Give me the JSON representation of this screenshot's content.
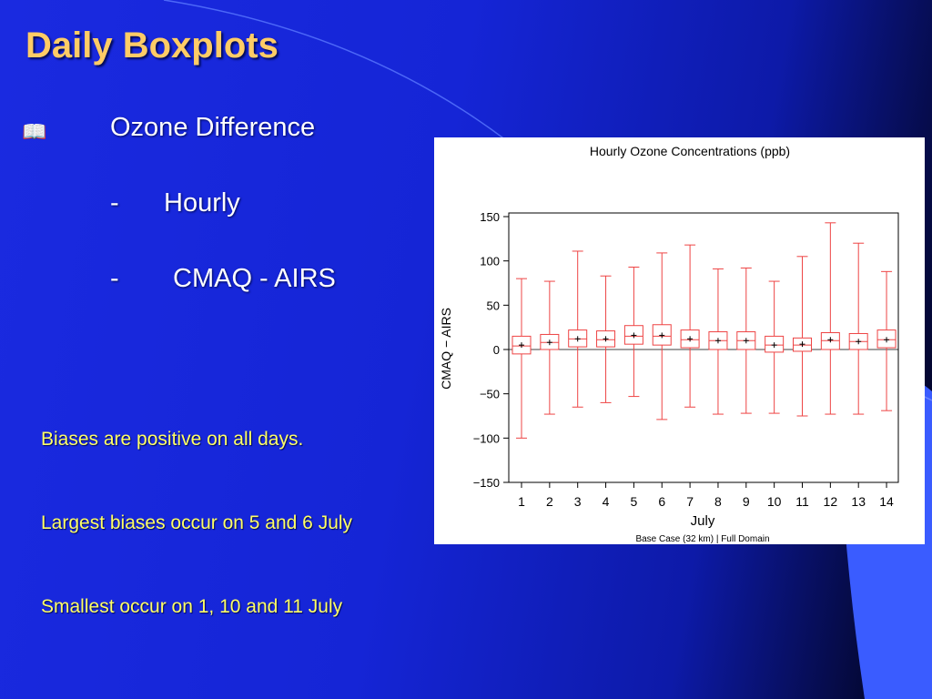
{
  "slide": {
    "title": "Daily Boxplots",
    "bullet_icon": "book-icon",
    "bullet_heading": "Ozone Difference",
    "sub_items": [
      {
        "marker": "-",
        "label": "Hourly"
      },
      {
        "marker": "-",
        "label": "CMAQ - AIRS"
      }
    ],
    "notes": [
      "Biases are positive on all days.",
      "Largest biases occur on 5 and 6 July",
      "Smallest occur on 1, 10 and 11 July"
    ],
    "colors": {
      "title": "#ffcc66",
      "notes": "#ffff66",
      "text": "#ffffff",
      "box": "#ee4444"
    }
  },
  "chart_data": {
    "type": "boxplot",
    "title": "Hourly Ozone Concentrations (ppb)",
    "xlabel": "July",
    "ylabel": "CMAQ − AIRS",
    "footnote": "Base Case (32 km) | Full Domain",
    "ylim": [
      -150,
      150
    ],
    "yticks": [
      150,
      100,
      50,
      0,
      -50,
      -100,
      -150
    ],
    "ytick_labels": [
      "150",
      "100",
      "50",
      "0",
      "−50",
      "−100",
      "−150"
    ],
    "categories": [
      "1",
      "2",
      "3",
      "4",
      "5",
      "6",
      "7",
      "8",
      "9",
      "10",
      "11",
      "12",
      "13",
      "14"
    ],
    "reference_line": 0,
    "boxes": [
      {
        "x": "1",
        "min": -100,
        "q1": -5,
        "median": 4,
        "q3": 15,
        "max": 80,
        "mean": 5
      },
      {
        "x": "2",
        "min": -73,
        "q1": 0,
        "median": 8,
        "q3": 17,
        "max": 77,
        "mean": 8
      },
      {
        "x": "3",
        "min": -65,
        "q1": 3,
        "median": 12,
        "q3": 22,
        "max": 111,
        "mean": 12
      },
      {
        "x": "4",
        "min": -60,
        "q1": 3,
        "median": 11,
        "q3": 21,
        "max": 83,
        "mean": 12
      },
      {
        "x": "5",
        "min": -53,
        "q1": 6,
        "median": 15,
        "q3": 27,
        "max": 93,
        "mean": 16
      },
      {
        "x": "6",
        "min": -79,
        "q1": 5,
        "median": 15,
        "q3": 28,
        "max": 109,
        "mean": 16
      },
      {
        "x": "7",
        "min": -65,
        "q1": 2,
        "median": 11,
        "q3": 22,
        "max": 118,
        "mean": 12
      },
      {
        "x": "8",
        "min": -73,
        "q1": 0,
        "median": 10,
        "q3": 20,
        "max": 91,
        "mean": 10
      },
      {
        "x": "9",
        "min": -72,
        "q1": 0,
        "median": 10,
        "q3": 20,
        "max": 92,
        "mean": 10
      },
      {
        "x": "10",
        "min": -72,
        "q1": -3,
        "median": 5,
        "q3": 15,
        "max": 77,
        "mean": 5
      },
      {
        "x": "11",
        "min": -75,
        "q1": -2,
        "median": 5,
        "q3": 13,
        "max": 105,
        "mean": 6
      },
      {
        "x": "12",
        "min": -73,
        "q1": 0,
        "median": 10,
        "q3": 19,
        "max": 143,
        "mean": 11
      },
      {
        "x": "13",
        "min": -73,
        "q1": 0,
        "median": 9,
        "q3": 18,
        "max": 120,
        "mean": 9
      },
      {
        "x": "14",
        "min": -69,
        "q1": 2,
        "median": 11,
        "q3": 22,
        "max": 88,
        "mean": 11
      }
    ],
    "grid": false,
    "legend": "none"
  }
}
